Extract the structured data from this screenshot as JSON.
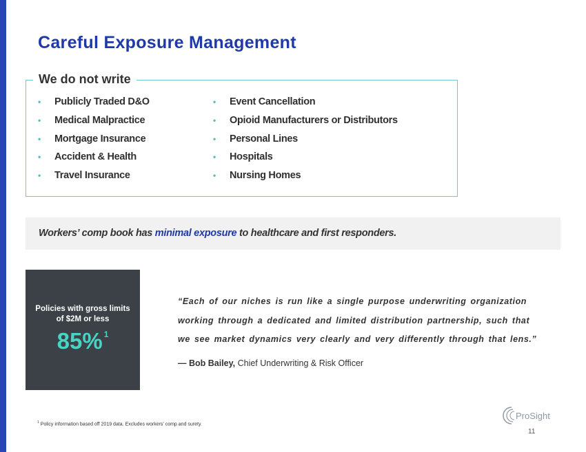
{
  "title": "Careful Exposure Management",
  "exclusions": {
    "heading": "We do not write",
    "bullet": "•",
    "left_column": [
      "Publicly Traded D&O",
      "Medical Malpractice",
      "Mortgage Insurance",
      "Accident & Health",
      "Travel Insurance"
    ],
    "right_column": [
      "Event Cancellation",
      "Opioid Manufacturers or Distributors",
      "Personal Lines",
      "Hospitals",
      "Nursing Homes"
    ]
  },
  "banner": {
    "prefix": "Workers’ comp book has ",
    "highlight": "minimal exposure",
    "suffix": " to healthcare and first responders."
  },
  "stat": {
    "label_line1": "Policies with gross limits",
    "label_line2": "of $2M or less",
    "value": "85%",
    "footnote_marker": "1"
  },
  "quote": {
    "text": "“Each of our niches is run like a single purpose underwriting organization working through a dedicated and limited distribution partnership, such that we see market dynamics very clearly and very differently through that lens.”",
    "attribution_name": "— Bob Bailey,",
    "attribution_title": " Chief Underwriting & Risk Officer"
  },
  "footnote": {
    "marker": "1",
    "text": " Policy information based off 2019 data. Excludes workers' comp and surety."
  },
  "logo": {
    "text": "ProSight"
  },
  "page_number": "11",
  "colors": {
    "accent_blue": "#1f3aa6",
    "teal": "#49d3c3",
    "box_border": "#6fc9c8",
    "stat_bg": "#3b4147"
  }
}
